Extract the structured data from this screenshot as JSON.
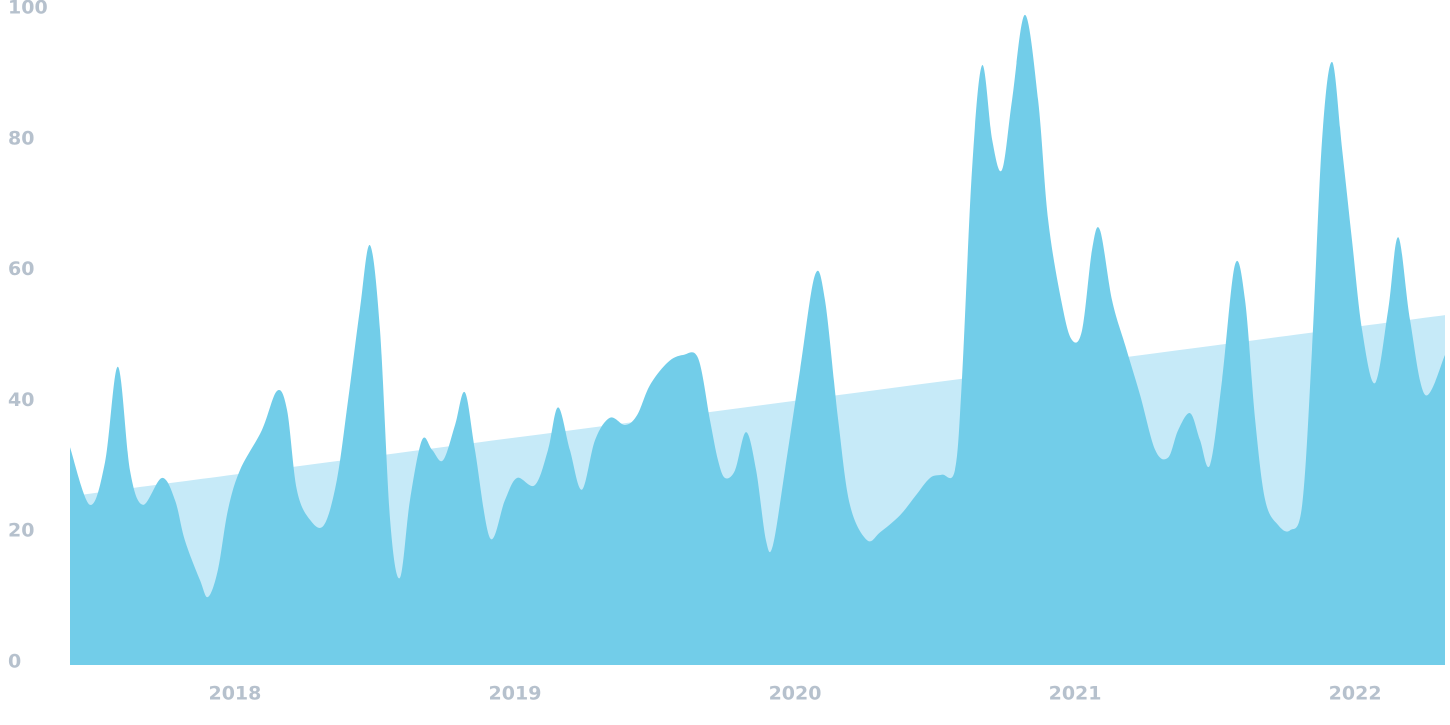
{
  "chart_data": {
    "type": "area",
    "xlim": [
      2017.411,
      2022.321
    ],
    "xticks": [
      2018,
      2019,
      2020,
      2021,
      2022
    ],
    "ylim": [
      0,
      100
    ],
    "yticks": [
      0,
      20,
      40,
      60,
      80,
      100
    ],
    "grid": false,
    "series": [
      {
        "color": "#c6eaf8",
        "x": [
          2017.411,
          2022.321
        ],
        "values": [
          25.8,
          53.5
        ]
      },
      {
        "color": "#72cde9",
        "x": [
          2017.411,
          2017.482,
          2017.536,
          2017.582,
          2017.625,
          2017.671,
          2017.739,
          2017.786,
          2017.821,
          2017.875,
          2017.904,
          2017.939,
          2017.975,
          2018.018,
          2018.096,
          2018.15,
          2018.186,
          2018.221,
          2018.268,
          2018.318,
          2018.364,
          2018.404,
          2018.446,
          2018.482,
          2018.518,
          2018.554,
          2018.589,
          2018.625,
          2018.668,
          2018.704,
          2018.743,
          2018.786,
          2018.821,
          2018.857,
          2018.911,
          2018.964,
          2019.007,
          2019.071,
          2019.118,
          2019.154,
          2019.196,
          2019.239,
          2019.286,
          2019.339,
          2019.393,
          2019.436,
          2019.482,
          2019.546,
          2019.6,
          2019.654,
          2019.696,
          2019.725,
          2019.75,
          2019.786,
          2019.825,
          2019.861,
          2019.896,
          2019.921,
          2019.964,
          2020.018,
          2020.071,
          2020.107,
          2020.154,
          2020.196,
          2020.257,
          2020.304,
          2020.375,
          2020.429,
          2020.482,
          2020.525,
          2020.571,
          2020.596,
          2020.632,
          2020.668,
          2020.704,
          2020.739,
          2020.775,
          2020.821,
          2020.868,
          2020.904,
          2020.954,
          2020.989,
          2021.025,
          2021.061,
          2021.089,
          2021.132,
          2021.179,
          2021.232,
          2021.286,
          2021.332,
          2021.368,
          2021.411,
          2021.446,
          2021.482,
          2021.525,
          2021.571,
          2021.607,
          2021.643,
          2021.679,
          2021.725,
          2021.768,
          2021.811,
          2021.846,
          2021.882,
          2021.918,
          2021.954,
          2021.989,
          2022.025,
          2022.071,
          2022.118,
          2022.154,
          2022.196,
          2022.25,
          2022.321
        ],
        "values": [
          33.3,
          24.5,
          31,
          45.6,
          29.8,
          24.5,
          28.6,
          25.2,
          19.1,
          13,
          10.4,
          14.5,
          23.7,
          29.8,
          35.9,
          41.9,
          39,
          26.8,
          22.2,
          21.4,
          28.3,
          40.5,
          54.3,
          64.2,
          51.2,
          22.2,
          13.3,
          25.2,
          34.4,
          32.9,
          31.3,
          36.7,
          41.7,
          32.9,
          19.4,
          25.2,
          28.6,
          27.5,
          32.9,
          39.4,
          32.9,
          26.8,
          34.4,
          37.8,
          36.7,
          38.2,
          42.8,
          46.3,
          47.4,
          46.9,
          37.5,
          31.3,
          28.6,
          29.8,
          35.6,
          29.8,
          19.1,
          18.3,
          29.8,
          45.1,
          59.6,
          55.8,
          37.5,
          24.5,
          19.1,
          20.3,
          22.9,
          25.8,
          28.6,
          29.1,
          29.8,
          43.6,
          75.7,
          91.7,
          80.3,
          75.7,
          86.4,
          99.4,
          86.4,
          68,
          55,
          49.7,
          51.2,
          63.6,
          66.5,
          55.8,
          48.9,
          41.3,
          32.9,
          31.7,
          35.9,
          38.5,
          34.4,
          30.6,
          43.6,
          61.2,
          55.8,
          37.5,
          25.2,
          21.4,
          20.6,
          24.5,
          48.2,
          80.3,
          92.2,
          78.7,
          64.9,
          51.2,
          43.1,
          54.3,
          65.4,
          52.8,
          41.3,
          47.4
        ]
      }
    ]
  }
}
